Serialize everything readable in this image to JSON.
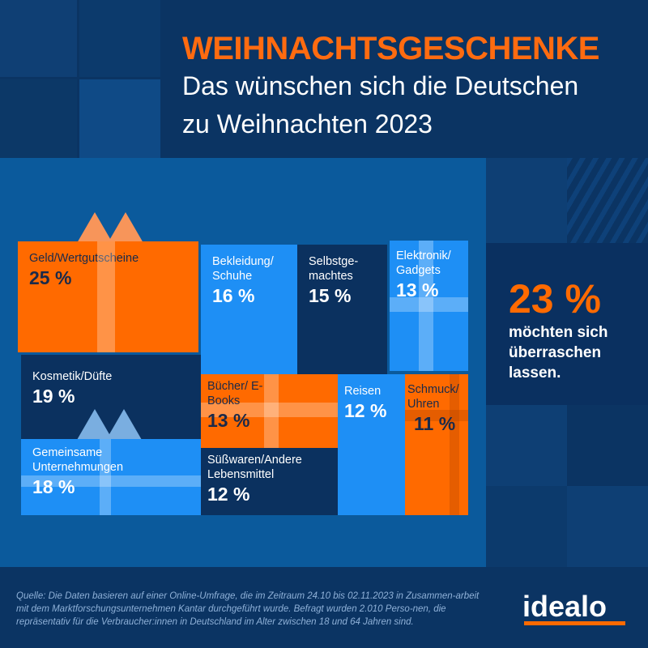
{
  "header": {
    "title": "WEIHNACHTSGESCHENKE",
    "subtitle_lines": [
      "Das wünschen sich die Deutschen",
      "zu Weihnachten 2023"
    ]
  },
  "chart_data": {
    "type": "treemap",
    "title": "WEIHNACHTSGESCHENKE",
    "unit": "%",
    "categories": [
      "Geld/Wertgutscheine",
      "Bekleidung/Schuhe",
      "Selbstgemachtes",
      "Elektronik/Gadgets",
      "Kosmetik/Düfte",
      "Gemeinsame Unternehmungen",
      "Bücher/E-Books",
      "Süßwaren/Andere Lebensmittel",
      "Reisen",
      "Schmuck/Uhren"
    ],
    "values": [
      25,
      16,
      15,
      13,
      19,
      18,
      13,
      12,
      12,
      11
    ],
    "labels": [
      {
        "name": "Geld/Wertgutscheine",
        "value": "25 %"
      },
      {
        "name": "Bekleidung/ Schuhe",
        "value": "16 %"
      },
      {
        "name": "Selbstge- machtes",
        "value": "15 %"
      },
      {
        "name": "Elektronik/ Gadgets",
        "value": "13 %"
      },
      {
        "name": "Kosmetik/Düfte",
        "value": "19 %"
      },
      {
        "name": "Gemeinsame Unternehmungen",
        "value": "18 %"
      },
      {
        "name": "Bücher/ E-Books",
        "value": "13 %"
      },
      {
        "name": "Süßwaren/Andere Lebensmittel",
        "value": "12 %"
      },
      {
        "name": "Reisen",
        "value": "12 %"
      },
      {
        "name": "Schmuck/ Uhren",
        "value": "11 %"
      }
    ],
    "colors": {
      "orange": "#ff6a00",
      "blue": "#1e8ff5",
      "navy": "#0b315f"
    }
  },
  "highlight": {
    "value": "23 %",
    "text": "möchten sich überraschen lassen."
  },
  "footer": {
    "source": "Quelle: Die Daten basieren auf einer Online-Umfrage, die im Zeitraum 24.10 bis 02.11.2023 in Zusammen-arbeit mit dem Marktforschungsunternehmen Kantar durchgeführt wurde. Befragt wurden 2.010 Perso-nen, die repräsentativ für die Verbraucher:innen in Deutschland im Alter zwischen 18 und 64 Jahren sind.",
    "logo": "idealo"
  }
}
